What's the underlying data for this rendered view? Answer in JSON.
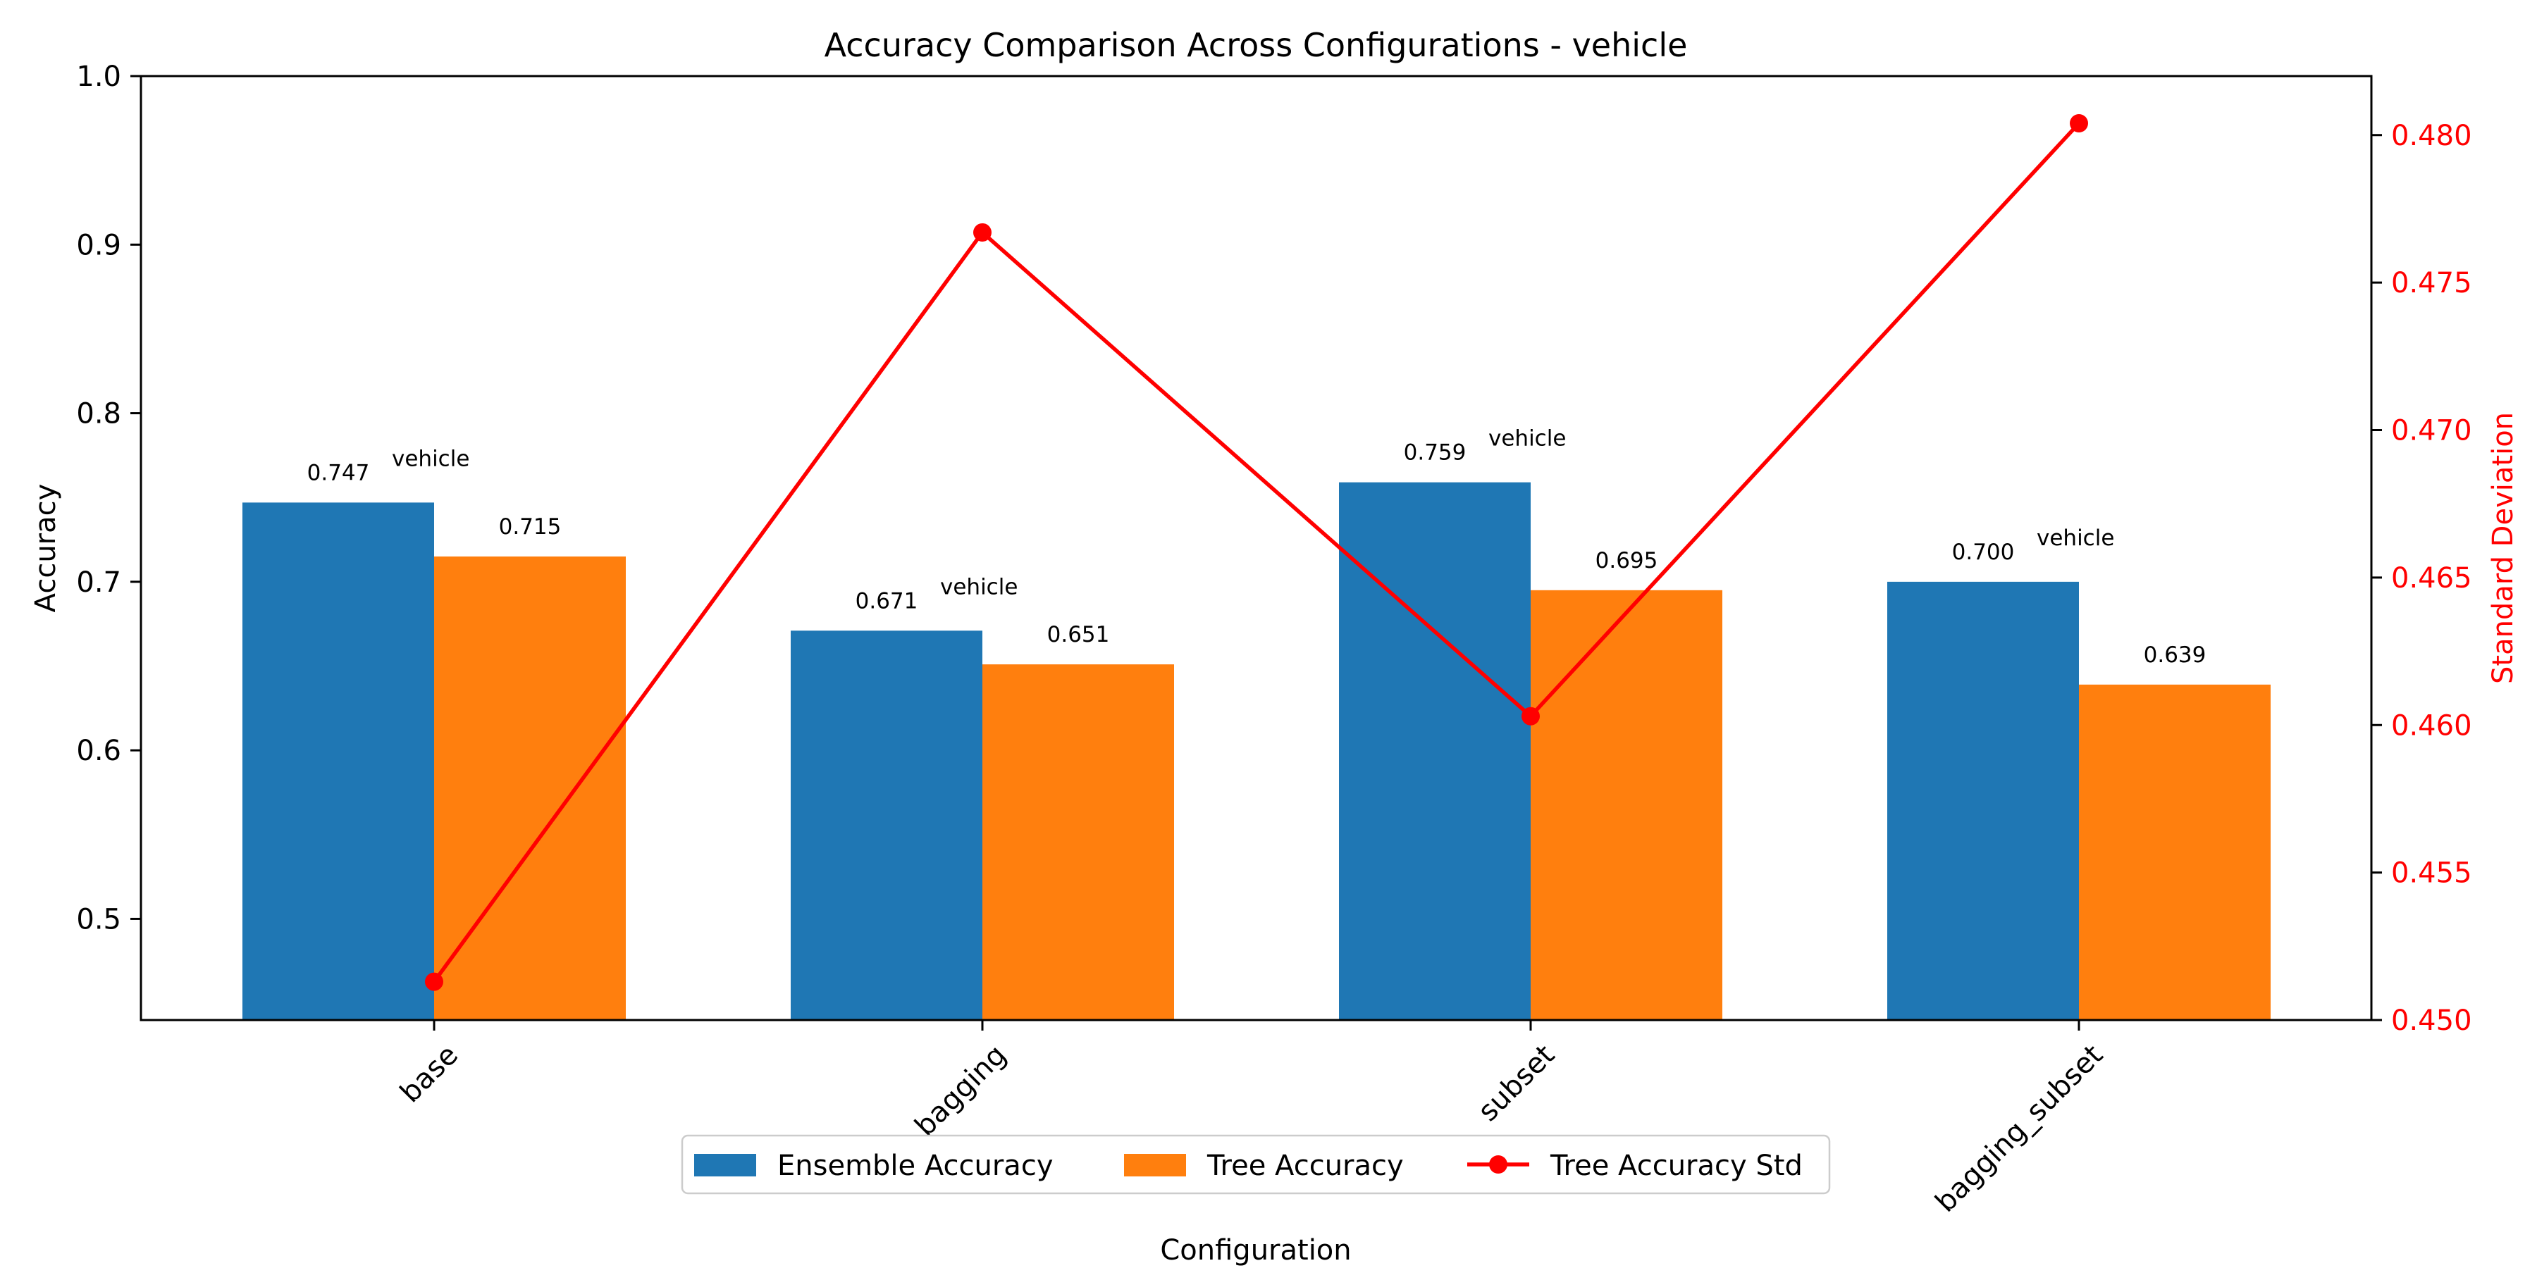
{
  "chart_data": {
    "type": "bar",
    "title": "Accuracy Comparison Across Configurations - vehicle",
    "xlabel": "Configuration",
    "ylabel": "Accuracy",
    "y2label": "Standard Deviation",
    "categories": [
      "base",
      "bagging",
      "subset",
      "bagging_subset"
    ],
    "ylim": [
      0.44,
      1.0
    ],
    "yticks": [
      "0.5",
      "0.6",
      "0.7",
      "0.8",
      "0.9",
      "1.0"
    ],
    "y2lim": [
      0.45,
      0.482
    ],
    "y2ticks": [
      "0.450",
      "0.455",
      "0.460",
      "0.465",
      "0.470",
      "0.475",
      "0.480"
    ],
    "series": [
      {
        "name": "Ensemble Accuracy",
        "kind": "bar",
        "color": "#1f77b4",
        "values": [
          0.747,
          0.671,
          0.759,
          0.7
        ],
        "labels": [
          "0.747",
          "0.671",
          "0.759",
          "0.700"
        ]
      },
      {
        "name": "Tree Accuracy",
        "kind": "bar",
        "color": "#ff7f0e",
        "values": [
          0.715,
          0.651,
          0.695,
          0.639
        ],
        "labels": [
          "0.715",
          "0.651",
          "0.695",
          "0.639"
        ]
      },
      {
        "name": "Tree Accuracy Std",
        "kind": "line",
        "axis": "right",
        "color": "#ff0000",
        "values": [
          0.4513,
          0.4767,
          0.4603,
          0.4804
        ]
      }
    ],
    "annotations": [
      "vehicle",
      "vehicle",
      "vehicle",
      "vehicle"
    ],
    "legend_position": "bottom-center",
    "grid": false
  }
}
